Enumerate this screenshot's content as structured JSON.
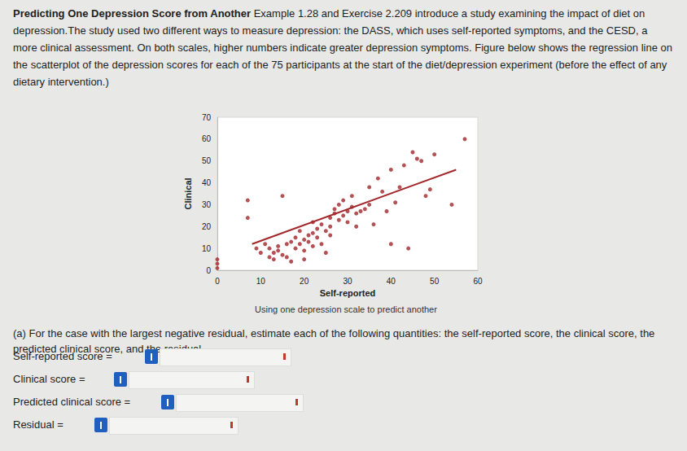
{
  "header": {
    "title": "Predicting One Depression Score from Another",
    "body": "Example 1.28 and Exercise 2.209 introduce a study examining the impact of diet on depression.The study used two different ways to measure depression: the DASS, which uses self-reported symptoms, and the CESD, a more clinical assessment. On both scales, higher numbers indicate greater depression symptoms. Figure below shows the regression line on the scatterplot of the depression scores for each of the 75 participants at the start of the diet/depression experiment (before the effect of any dietary intervention.)"
  },
  "chart_data": {
    "type": "scatter",
    "x_label": "Self-reported",
    "y_label": "Clinical",
    "xlim": [
      0,
      60
    ],
    "xticks": [
      0,
      10,
      20,
      30,
      40,
      50,
      60
    ],
    "ylim": [
      0,
      70
    ],
    "yticks": [
      0,
      10,
      20,
      30,
      40,
      50,
      60,
      70
    ],
    "grid": false,
    "series": [
      {
        "type": "scatter",
        "color": "#a3262b",
        "marker": "circle",
        "x": [
          0,
          0,
          0,
          7,
          7,
          15,
          11,
          12,
          13,
          14,
          15,
          16,
          17,
          12,
          13,
          14,
          17,
          18,
          18,
          19,
          19,
          20,
          20,
          21,
          21,
          22,
          22,
          23,
          23,
          24,
          24,
          25,
          25,
          26,
          26,
          27,
          27,
          28,
          28,
          29,
          29,
          30,
          30,
          31,
          31,
          32,
          33,
          34,
          35,
          35,
          36,
          37,
          38,
          39,
          40,
          40,
          41,
          42,
          43,
          44,
          45,
          46,
          47,
          48,
          49,
          50,
          54,
          57,
          22,
          26,
          32,
          10,
          9,
          20,
          16
        ],
        "values": [
          1,
          3,
          5,
          32,
          24,
          34,
          12,
          10,
          8,
          11,
          7,
          6,
          4,
          6,
          5,
          9,
          13,
          15,
          10,
          12,
          18,
          9,
          14,
          16,
          13,
          17,
          11,
          15,
          19,
          12,
          21,
          18,
          8,
          24,
          20,
          26,
          28,
          23,
          30,
          32,
          25,
          27,
          22,
          29,
          34,
          26,
          27,
          28,
          30,
          38,
          21,
          42,
          36,
          27,
          46,
          12,
          31,
          38,
          48,
          10,
          54,
          51,
          50,
          34,
          37,
          53,
          30,
          60,
          22,
          16,
          20,
          8,
          10,
          5,
          12
        ]
      },
      {
        "type": "line",
        "color": "#a3262b",
        "line_style": "solid",
        "x": [
          8,
          55
        ],
        "values": [
          12,
          46
        ]
      }
    ]
  },
  "caption": "Using one depression scale to predict another",
  "question": "(a) For the case with the largest negative residual, estimate each of the following quantities: the self-reported score, the clinical score, the predicted clinical score, and the residual.",
  "fields": [
    "Self-reported score =",
    "Clinical score =",
    "Predicted clinical score =",
    "Residual ="
  ]
}
